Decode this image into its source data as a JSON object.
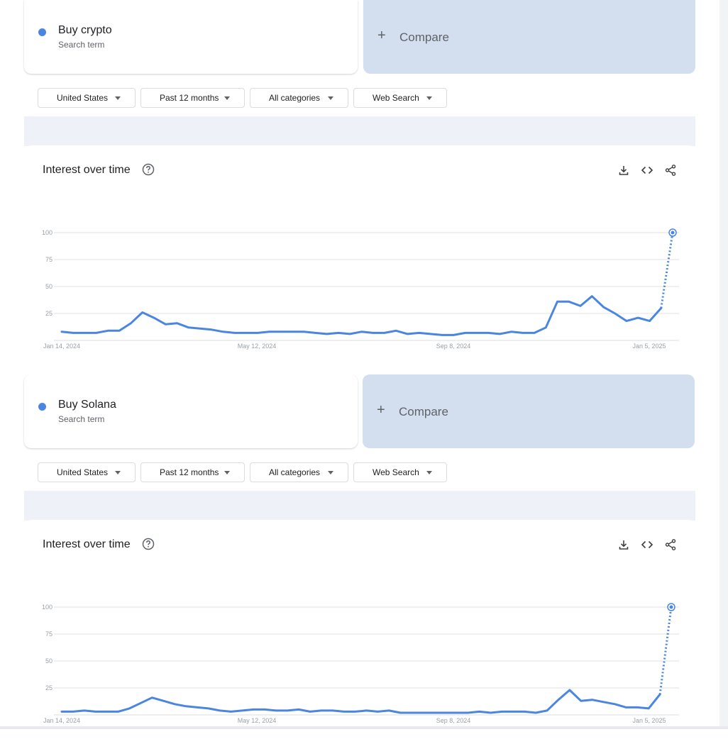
{
  "panels": [
    {
      "term": {
        "name": "Buy crypto",
        "type": "Search term"
      },
      "compare": {
        "label": "Compare"
      },
      "filters": [
        {
          "label": "United States"
        },
        {
          "label": "Past 12 months"
        },
        {
          "label": "All categories"
        },
        {
          "label": "Web Search"
        }
      ],
      "chart_title": "Interest over time"
    },
    {
      "term": {
        "name": "Buy Solana",
        "type": "Search term"
      },
      "compare": {
        "label": "Compare"
      },
      "filters": [
        {
          "label": "United States"
        },
        {
          "label": "Past 12 months"
        },
        {
          "label": "All categories"
        },
        {
          "label": "Web Search"
        }
      ],
      "chart_title": "Interest over time"
    }
  ],
  "colors": {
    "series": "#4a86e1",
    "compare_bg": "#d3deef",
    "grid": "#e0e0e0"
  },
  "icons": [
    "help-icon",
    "download-icon",
    "embed-icon",
    "share-icon"
  ],
  "chart_data": [
    {
      "type": "line",
      "x_tick_labels": [
        "Jan 14, 2024",
        "May 12, 2024",
        "Sep 8, 2024",
        "Jan 5, 2025"
      ],
      "y_ticks": [
        25,
        50,
        75,
        100
      ],
      "ylim": [
        0,
        100
      ],
      "grid": true,
      "partial_last_point": true,
      "series": [
        {
          "values": [
            8,
            7,
            7,
            7,
            9,
            9,
            16,
            26,
            21,
            15,
            16,
            12,
            11,
            10,
            8,
            7,
            7,
            7,
            8,
            8,
            8,
            8,
            7,
            6,
            7,
            6,
            8,
            7,
            7,
            9,
            6,
            7,
            6,
            5,
            5,
            7,
            7,
            7,
            6,
            8,
            7,
            7,
            12,
            36,
            36,
            32,
            41,
            31,
            25,
            18,
            21,
            18,
            30,
            100
          ]
        }
      ]
    },
    {
      "type": "line",
      "x_tick_labels": [
        "Jan 14, 2024",
        "May 12, 2024",
        "Sep 8, 2024",
        "Jan 5, 2025"
      ],
      "y_ticks": [
        25,
        50,
        75,
        100
      ],
      "ylim": [
        0,
        100
      ],
      "grid": true,
      "partial_last_point": true,
      "series": [
        {
          "values": [
            3,
            3,
            4,
            3,
            3,
            3,
            6,
            11,
            16,
            13,
            10,
            8,
            7,
            6,
            4,
            3,
            4,
            5,
            5,
            4,
            4,
            5,
            3,
            4,
            4,
            3,
            3,
            4,
            3,
            4,
            2,
            2,
            2,
            2,
            2,
            2,
            2,
            3,
            2,
            3,
            3,
            3,
            2,
            4,
            14,
            23,
            13,
            14,
            12,
            10,
            7,
            7,
            6,
            19,
            100
          ]
        }
      ]
    }
  ]
}
